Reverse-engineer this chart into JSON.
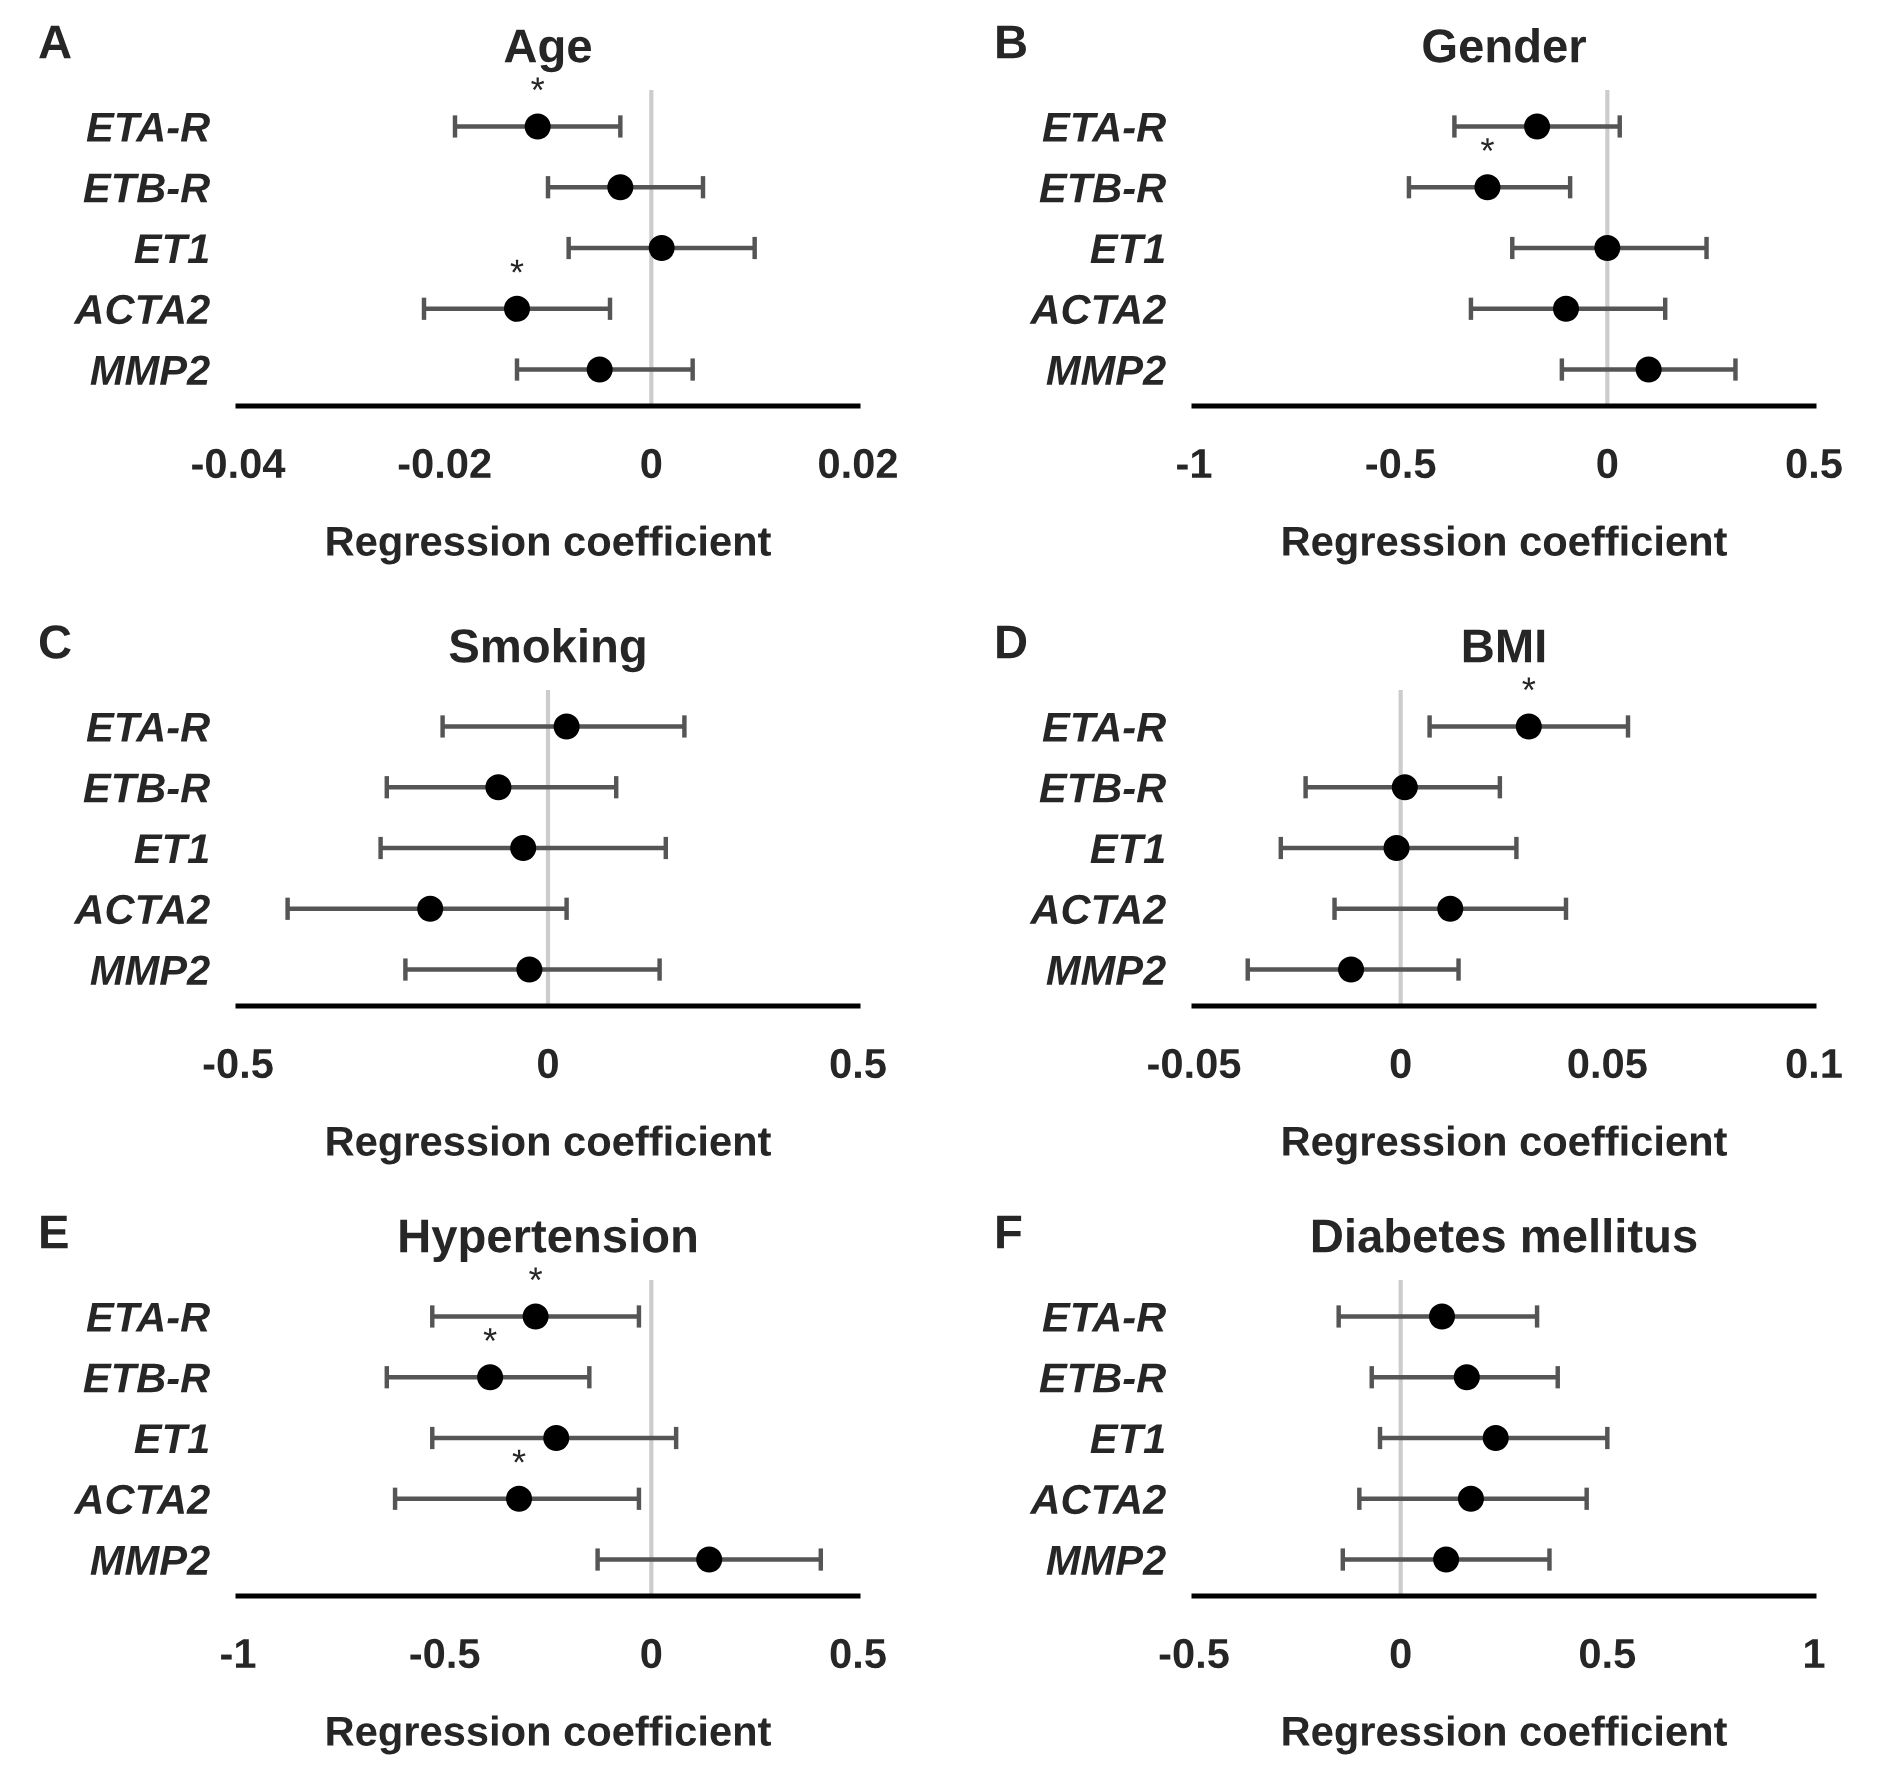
{
  "chart_data": [
    {
      "type": "scatter",
      "orientation": "horizontal",
      "title": "Age",
      "xlabel": "Regression coefficient",
      "categories": [
        "ETA-R",
        "ETB-R",
        "ET1",
        "ACTA2",
        "MMP2"
      ],
      "marker": "circle",
      "color": "#000000",
      "values": [
        -0.011,
        -0.003,
        0.001,
        -0.013,
        -0.005
      ],
      "errors": [
        [
          -0.019,
          -0.003
        ],
        [
          -0.01,
          0.005
        ],
        [
          -0.008,
          0.01
        ],
        [
          -0.022,
          -0.004
        ],
        [
          -0.013,
          0.004
        ]
      ],
      "xlim": [
        -0.04,
        0.02
      ],
      "xticks": [
        -0.04,
        -0.02,
        0,
        0.02
      ],
      "ref_lines": [
        {
          "axis": "x",
          "value": 0,
          "color": "#cccccc"
        }
      ],
      "annotations": [
        "A",
        {
          "text": "*",
          "x": -0.011,
          "y": "ETA-R"
        },
        {
          "text": "*",
          "x": -0.013,
          "y": "ACTA2"
        }
      ]
    },
    {
      "type": "scatter",
      "orientation": "horizontal",
      "title": "Gender",
      "xlabel": "Regression coefficient",
      "categories": [
        "ETA-R",
        "ETB-R",
        "ET1",
        "ACTA2",
        "MMP2"
      ],
      "marker": "circle",
      "color": "#000000",
      "values": [
        -0.17,
        -0.29,
        0.0,
        -0.1,
        0.1
      ],
      "errors": [
        [
          -0.37,
          0.03
        ],
        [
          -0.48,
          -0.09
        ],
        [
          -0.23,
          0.24
        ],
        [
          -0.33,
          0.14
        ],
        [
          -0.11,
          0.31
        ]
      ],
      "xlim": [
        -1,
        0.5
      ],
      "xticks": [
        -1,
        -0.5,
        0,
        0.5
      ],
      "ref_lines": [
        {
          "axis": "x",
          "value": 0,
          "color": "#cccccc"
        }
      ],
      "annotations": [
        "B",
        {
          "text": "*",
          "x": -0.29,
          "y": "ETB-R"
        }
      ]
    },
    {
      "type": "scatter",
      "orientation": "horizontal",
      "title": "Smoking",
      "xlabel": "Regression coefficient",
      "categories": [
        "ETA-R",
        "ETB-R",
        "ET1",
        "ACTA2",
        "MMP2"
      ],
      "marker": "circle",
      "color": "#000000",
      "values": [
        0.03,
        -0.08,
        -0.04,
        -0.19,
        -0.03
      ],
      "errors": [
        [
          -0.17,
          0.22
        ],
        [
          -0.26,
          0.11
        ],
        [
          -0.27,
          0.19
        ],
        [
          -0.42,
          0.03
        ],
        [
          -0.23,
          0.18
        ]
      ],
      "xlim": [
        -0.5,
        0.5
      ],
      "xticks": [
        -0.5,
        0,
        0.5
      ],
      "ref_lines": [
        {
          "axis": "x",
          "value": 0,
          "color": "#cccccc"
        }
      ],
      "annotations": [
        "C"
      ]
    },
    {
      "type": "scatter",
      "orientation": "horizontal",
      "title": "BMI",
      "xlabel": "Regression coefficient",
      "categories": [
        "ETA-R",
        "ETB-R",
        "ET1",
        "ACTA2",
        "MMP2"
      ],
      "marker": "circle",
      "color": "#000000",
      "values": [
        0.031,
        0.001,
        -0.001,
        0.012,
        -0.012
      ],
      "errors": [
        [
          0.007,
          0.055
        ],
        [
          -0.023,
          0.024
        ],
        [
          -0.029,
          0.028
        ],
        [
          -0.016,
          0.04
        ],
        [
          -0.037,
          0.014
        ]
      ],
      "xlim": [
        -0.05,
        0.1
      ],
      "xticks": [
        -0.05,
        0,
        0.05,
        0.1
      ],
      "ref_lines": [
        {
          "axis": "x",
          "value": 0,
          "color": "#cccccc"
        }
      ],
      "annotations": [
        "D",
        {
          "text": "*",
          "x": 0.031,
          "y": "ETA-R"
        }
      ]
    },
    {
      "type": "scatter",
      "orientation": "horizontal",
      "title": "Hypertension",
      "xlabel": "Regression coefficient",
      "categories": [
        "ETA-R",
        "ETB-R",
        "ET1",
        "ACTA2",
        "MMP2"
      ],
      "marker": "circle",
      "color": "#000000",
      "values": [
        -0.28,
        -0.39,
        -0.23,
        -0.32,
        0.14
      ],
      "errors": [
        [
          -0.53,
          -0.03
        ],
        [
          -0.64,
          -0.15
        ],
        [
          -0.53,
          0.06
        ],
        [
          -0.62,
          -0.03
        ],
        [
          -0.13,
          0.41
        ]
      ],
      "xlim": [
        -1,
        0.5
      ],
      "xticks": [
        -1,
        -0.5,
        0,
        0.5
      ],
      "ref_lines": [
        {
          "axis": "x",
          "value": 0,
          "color": "#cccccc"
        }
      ],
      "annotations": [
        "E",
        {
          "text": "*",
          "x": -0.28,
          "y": "ETA-R"
        },
        {
          "text": "*",
          "x": -0.39,
          "y": "ETB-R"
        },
        {
          "text": "*",
          "x": -0.32,
          "y": "ACTA2"
        }
      ]
    },
    {
      "type": "scatter",
      "orientation": "horizontal",
      "title": "Diabetes mellitus",
      "xlabel": "Regression coefficient",
      "categories": [
        "ETA-R",
        "ETB-R",
        "ET1",
        "ACTA2",
        "MMP2"
      ],
      "marker": "circle",
      "color": "#000000",
      "values": [
        0.1,
        0.16,
        0.23,
        0.17,
        0.11
      ],
      "errors": [
        [
          -0.15,
          0.33
        ],
        [
          -0.07,
          0.38
        ],
        [
          -0.05,
          0.5
        ],
        [
          -0.1,
          0.45
        ],
        [
          -0.14,
          0.36
        ]
      ],
      "xlim": [
        -0.5,
        1
      ],
      "xticks": [
        -0.5,
        0,
        0.5,
        1
      ],
      "ref_lines": [
        {
          "axis": "x",
          "value": 0,
          "color": "#cccccc"
        }
      ],
      "annotations": [
        "F"
      ]
    }
  ]
}
